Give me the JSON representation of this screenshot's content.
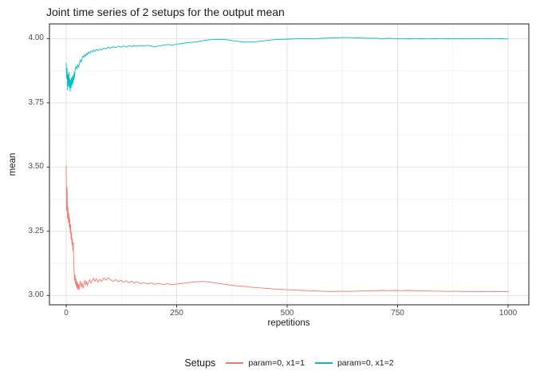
{
  "chart_data": {
    "type": "line",
    "title": "Joint time series of 2 setups for the output mean",
    "xlabel": "repetitions",
    "ylabel": "mean",
    "legend_title": "Setups",
    "legend_position": "bottom",
    "grid": true,
    "panel_background": "#ffffff",
    "grid_major_color": "#e2e2e2",
    "grid_minor_color": "#f3f3f3",
    "border_color": "#333333",
    "tick_color": "#333333",
    "tick_label_color": "#4d4d4d",
    "xlim": [
      -37.9,
      1046.9
    ],
    "ylim": [
      2.964,
      4.057
    ],
    "x_ticks": {
      "values": [
        0,
        250,
        500,
        750,
        1000
      ],
      "labels": [
        "0",
        "250",
        "500",
        "750",
        "1000"
      ]
    },
    "y_ticks": {
      "values": [
        3.0,
        3.25,
        3.5,
        3.75,
        4.0
      ],
      "labels": [
        "3.00",
        "3.25",
        "3.50",
        "3.75",
        "4.00"
      ]
    },
    "x_minor": [
      125,
      375,
      625,
      875
    ],
    "y_minor": [
      3.125,
      3.375,
      3.625,
      3.875
    ],
    "series": [
      {
        "name": "param=0, x1=1",
        "color": "#F8766D",
        "points": [
          [
            0,
            3.505
          ],
          [
            1,
            3.33
          ],
          [
            2,
            3.42
          ],
          [
            3,
            3.3
          ],
          [
            4,
            3.345
          ],
          [
            5,
            3.285
          ],
          [
            6,
            3.32
          ],
          [
            7,
            3.265
          ],
          [
            8,
            3.3
          ],
          [
            9,
            3.245
          ],
          [
            10,
            3.275
          ],
          [
            11,
            3.22
          ],
          [
            12,
            3.245
          ],
          [
            13,
            3.2
          ],
          [
            14,
            3.22
          ],
          [
            15,
            3.175
          ],
          [
            16,
            3.205
          ],
          [
            17,
            3.12
          ],
          [
            18,
            3.085
          ],
          [
            19,
            3.06
          ],
          [
            20,
            3.08
          ],
          [
            21,
            3.045
          ],
          [
            22,
            3.065
          ],
          [
            23,
            3.035
          ],
          [
            24,
            3.055
          ],
          [
            25,
            3.028
          ],
          [
            26,
            3.048
          ],
          [
            27,
            3.025
          ],
          [
            28,
            3.042
          ],
          [
            29,
            3.022
          ],
          [
            30,
            3.04
          ],
          [
            32,
            3.055
          ],
          [
            34,
            3.032
          ],
          [
            36,
            3.05
          ],
          [
            38,
            3.028
          ],
          [
            40,
            3.045
          ],
          [
            42,
            3.06
          ],
          [
            44,
            3.042
          ],
          [
            46,
            3.055
          ],
          [
            48,
            3.038
          ],
          [
            50,
            3.052
          ],
          [
            53,
            3.062
          ],
          [
            56,
            3.048
          ],
          [
            59,
            3.06
          ],
          [
            62,
            3.068
          ],
          [
            65,
            3.055
          ],
          [
            68,
            3.065
          ],
          [
            72,
            3.052
          ],
          [
            76,
            3.063
          ],
          [
            80,
            3.055
          ],
          [
            85,
            3.068
          ],
          [
            90,
            3.06
          ],
          [
            95,
            3.07
          ],
          [
            100,
            3.062
          ],
          [
            106,
            3.055
          ],
          [
            112,
            3.062
          ],
          [
            118,
            3.054
          ],
          [
            124,
            3.06
          ],
          [
            130,
            3.052
          ],
          [
            136,
            3.058
          ],
          [
            142,
            3.05
          ],
          [
            148,
            3.056
          ],
          [
            154,
            3.048
          ],
          [
            160,
            3.054
          ],
          [
            168,
            3.046
          ],
          [
            176,
            3.051
          ],
          [
            184,
            3.045
          ],
          [
            192,
            3.049
          ],
          [
            200,
            3.044
          ],
          [
            210,
            3.047
          ],
          [
            220,
            3.043
          ],
          [
            230,
            3.046
          ],
          [
            240,
            3.042
          ],
          [
            250,
            3.045
          ],
          [
            262,
            3.047
          ],
          [
            274,
            3.05
          ],
          [
            286,
            3.052
          ],
          [
            298,
            3.054
          ],
          [
            310,
            3.055
          ],
          [
            322,
            3.053
          ],
          [
            334,
            3.05
          ],
          [
            346,
            3.047
          ],
          [
            358,
            3.044
          ],
          [
            370,
            3.041
          ],
          [
            385,
            3.038
          ],
          [
            400,
            3.036
          ],
          [
            415,
            3.033
          ],
          [
            430,
            3.031
          ],
          [
            445,
            3.029
          ],
          [
            460,
            3.027
          ],
          [
            475,
            3.025
          ],
          [
            490,
            3.024
          ],
          [
            505,
            3.022
          ],
          [
            520,
            3.021
          ],
          [
            535,
            3.02
          ],
          [
            550,
            3.019
          ],
          [
            565,
            3.018
          ],
          [
            580,
            3.017
          ],
          [
            595,
            3.016
          ],
          [
            610,
            3.016
          ],
          [
            625,
            3.017
          ],
          [
            640,
            3.016
          ],
          [
            655,
            3.017
          ],
          [
            670,
            3.018
          ],
          [
            685,
            3.018
          ],
          [
            700,
            3.019
          ],
          [
            715,
            3.02
          ],
          [
            730,
            3.019
          ],
          [
            745,
            3.02
          ],
          [
            760,
            3.019
          ],
          [
            775,
            3.02
          ],
          [
            790,
            3.019
          ],
          [
            805,
            3.018
          ],
          [
            820,
            3.018
          ],
          [
            835,
            3.017
          ],
          [
            850,
            3.017
          ],
          [
            865,
            3.016
          ],
          [
            880,
            3.017
          ],
          [
            895,
            3.016
          ],
          [
            910,
            3.016
          ],
          [
            925,
            3.015
          ],
          [
            940,
            3.016
          ],
          [
            955,
            3.015
          ],
          [
            970,
            3.016
          ],
          [
            985,
            3.015
          ],
          [
            1000,
            3.015
          ]
        ]
      },
      {
        "name": "param=0, x1=2",
        "color": "#00BFC4",
        "points": [
          [
            0,
            3.905
          ],
          [
            1,
            3.845
          ],
          [
            2,
            3.885
          ],
          [
            3,
            3.8
          ],
          [
            4,
            3.86
          ],
          [
            5,
            3.815
          ],
          [
            6,
            3.87
          ],
          [
            7,
            3.81
          ],
          [
            8,
            3.845
          ],
          [
            9,
            3.795
          ],
          [
            10,
            3.838
          ],
          [
            11,
            3.808
          ],
          [
            12,
            3.848
          ],
          [
            13,
            3.818
          ],
          [
            14,
            3.852
          ],
          [
            15,
            3.825
          ],
          [
            16,
            3.858
          ],
          [
            17,
            3.838
          ],
          [
            18,
            3.868
          ],
          [
            19,
            3.85
          ],
          [
            20,
            3.878
          ],
          [
            22,
            3.892
          ],
          [
            24,
            3.882
          ],
          [
            26,
            3.898
          ],
          [
            28,
            3.888
          ],
          [
            30,
            3.903
          ],
          [
            32,
            3.918
          ],
          [
            34,
            3.908
          ],
          [
            36,
            3.922
          ],
          [
            38,
            3.932
          ],
          [
            40,
            3.927
          ],
          [
            42,
            3.938
          ],
          [
            44,
            3.932
          ],
          [
            46,
            3.942
          ],
          [
            48,
            3.937
          ],
          [
            50,
            3.947
          ],
          [
            53,
            3.942
          ],
          [
            56,
            3.952
          ],
          [
            59,
            3.948
          ],
          [
            62,
            3.956
          ],
          [
            65,
            3.95
          ],
          [
            68,
            3.958
          ],
          [
            72,
            3.953
          ],
          [
            76,
            3.96
          ],
          [
            80,
            3.956
          ],
          [
            85,
            3.963
          ],
          [
            90,
            3.96
          ],
          [
            95,
            3.966
          ],
          [
            100,
            3.963
          ],
          [
            106,
            3.968
          ],
          [
            112,
            3.965
          ],
          [
            118,
            3.97
          ],
          [
            124,
            3.967
          ],
          [
            130,
            3.971
          ],
          [
            136,
            3.968
          ],
          [
            142,
            3.972
          ],
          [
            148,
            3.969
          ],
          [
            154,
            3.973
          ],
          [
            160,
            3.97
          ],
          [
            168,
            3.973
          ],
          [
            176,
            3.971
          ],
          [
            184,
            3.974
          ],
          [
            192,
            3.971
          ],
          [
            200,
            3.968
          ],
          [
            210,
            3.971
          ],
          [
            220,
            3.974
          ],
          [
            230,
            3.977
          ],
          [
            240,
            3.975
          ],
          [
            250,
            3.978
          ],
          [
            262,
            3.981
          ],
          [
            274,
            3.984
          ],
          [
            286,
            3.986
          ],
          [
            298,
            3.988
          ],
          [
            310,
            3.992
          ],
          [
            322,
            3.995
          ],
          [
            334,
            3.996
          ],
          [
            346,
            3.997
          ],
          [
            358,
            3.996
          ],
          [
            370,
            3.994
          ],
          [
            385,
            3.99
          ],
          [
            400,
            3.987
          ],
          [
            415,
            3.986
          ],
          [
            430,
            3.988
          ],
          [
            445,
            3.991
          ],
          [
            460,
            3.994
          ],
          [
            475,
            3.996
          ],
          [
            490,
            3.997
          ],
          [
            505,
            3.998
          ],
          [
            520,
            3.999
          ],
          [
            535,
            4.0
          ],
          [
            550,
            4.0
          ],
          [
            565,
            4.0
          ],
          [
            580,
            4.001
          ],
          [
            595,
            4.002
          ],
          [
            610,
            4.003
          ],
          [
            625,
            4.004
          ],
          [
            640,
            4.004
          ],
          [
            655,
            4.003
          ],
          [
            670,
            4.002
          ],
          [
            685,
            4.001
          ],
          [
            700,
            4.001
          ],
          [
            715,
            4.0
          ],
          [
            730,
            4.001
          ],
          [
            745,
            4.0
          ],
          [
            760,
            3.999
          ],
          [
            775,
            4.0
          ],
          [
            790,
            3.999
          ],
          [
            805,
            4.0
          ],
          [
            820,
            3.999
          ],
          [
            835,
            4.0
          ],
          [
            850,
            3.999
          ],
          [
            865,
            4.0
          ],
          [
            880,
            3.999
          ],
          [
            895,
            4.0
          ],
          [
            910,
            3.999
          ],
          [
            925,
            4.0
          ],
          [
            940,
            3.999
          ],
          [
            955,
            4.0
          ],
          [
            970,
            3.999
          ],
          [
            985,
            4.0
          ],
          [
            1000,
            3.998
          ]
        ]
      }
    ]
  }
}
